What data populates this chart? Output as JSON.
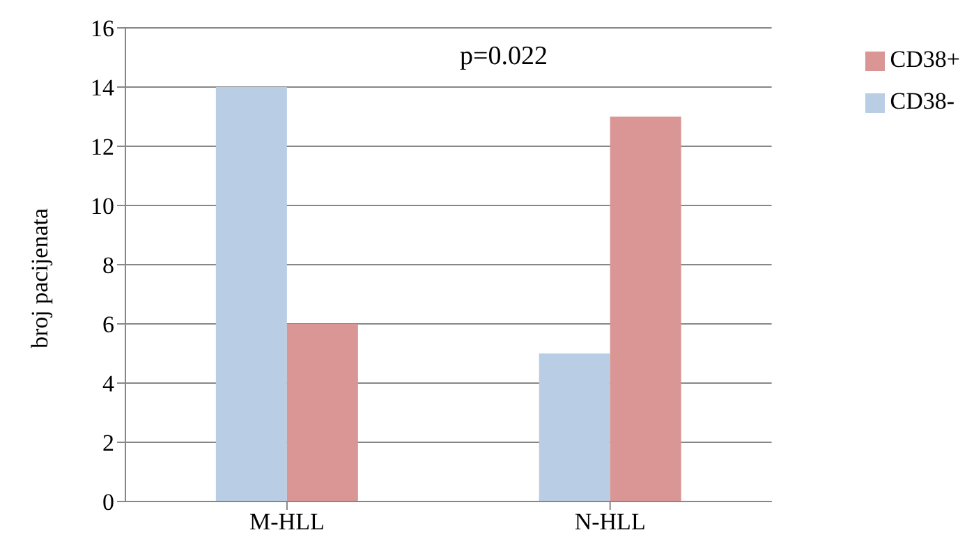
{
  "chart_data": {
    "type": "bar",
    "ylabel": "broj pacijenata",
    "categories": [
      "M-HLL",
      "N-HLL"
    ],
    "series": [
      {
        "name": "CD38-",
        "color": "#b9cde5",
        "values": [
          14,
          5
        ]
      },
      {
        "name": "CD38+",
        "color": "#d99694",
        "values": [
          6,
          13
        ]
      }
    ],
    "ylim": [
      0,
      16
    ],
    "yticks": [
      0,
      2,
      4,
      6,
      8,
      10,
      12,
      14,
      16
    ],
    "grid": "y",
    "legend": "top right",
    "annotations": [
      "p=0.022"
    ]
  }
}
